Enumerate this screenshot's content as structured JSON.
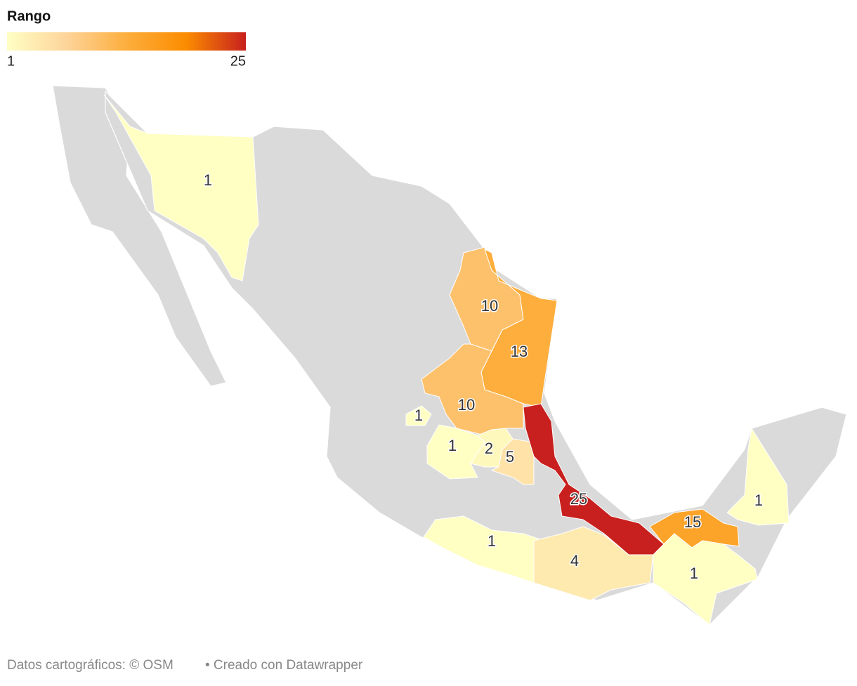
{
  "legend": {
    "title": "Rango",
    "min": 1,
    "max": 25,
    "colors": [
      "#ffffc4",
      "#fdd49a",
      "#fdae3d",
      "#fb8c00",
      "#c8201e"
    ]
  },
  "regions": [
    {
      "value": 1
    },
    {
      "value": 10
    },
    {
      "value": 13
    },
    {
      "value": 10
    },
    {
      "value": 1
    },
    {
      "value": 1
    },
    {
      "value": 2
    },
    {
      "value": 5
    },
    {
      "value": 25
    },
    {
      "value": 15
    },
    {
      "value": 1
    },
    {
      "value": 1
    },
    {
      "value": 4
    },
    {
      "value": 1
    }
  ],
  "footer": [
    "Datos cartográficos: © OSM",
    "• Creado con Datawrapper"
  ]
}
